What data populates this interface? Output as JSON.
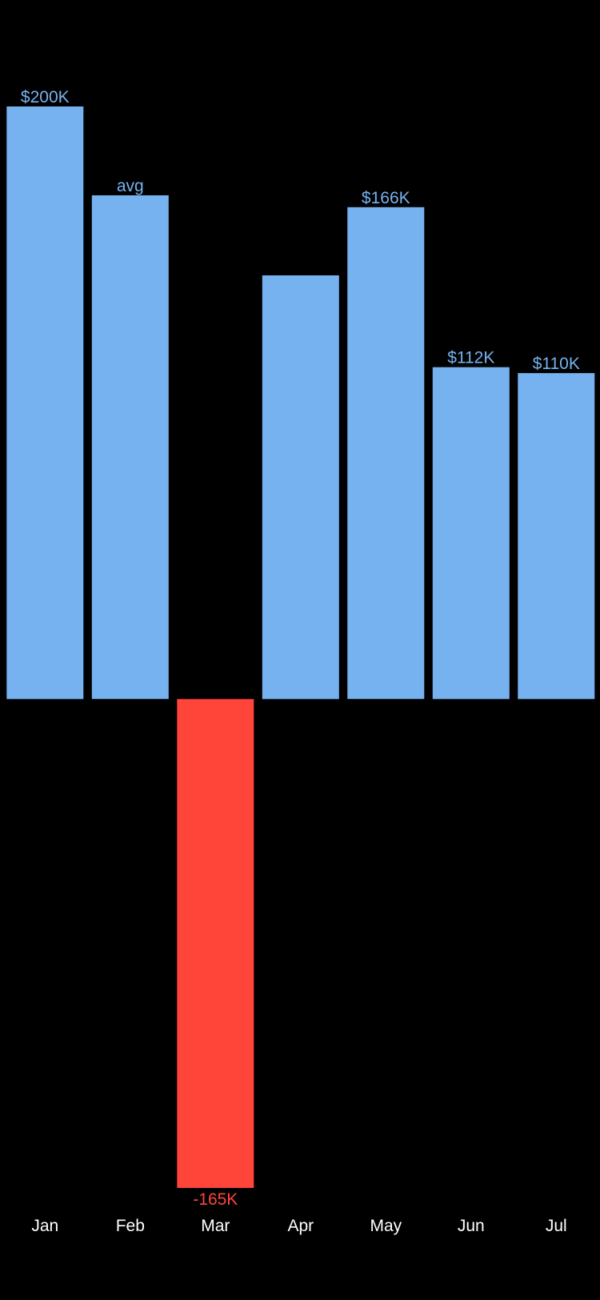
{
  "chart_data": {
    "type": "bar",
    "title": "",
    "xlabel": "",
    "ylabel": "",
    "categories": [
      "Jan",
      "Feb",
      "Mar",
      "Apr",
      "May",
      "Jun",
      "Jul"
    ],
    "values": [
      200,
      170,
      -165,
      143,
      166,
      112,
      110
    ],
    "value_labels": [
      "$200K",
      "avg",
      "-165K",
      "",
      "$166K",
      "$112K",
      "$110K"
    ],
    "units": "thousands of dollars",
    "ylim": [
      -165,
      200
    ],
    "grid": false,
    "legend": "none",
    "colors": {
      "positive": "#75B2EF",
      "negative": "#FF453A",
      "background": "#000000",
      "tick_text": "#FFFFFF"
    }
  }
}
